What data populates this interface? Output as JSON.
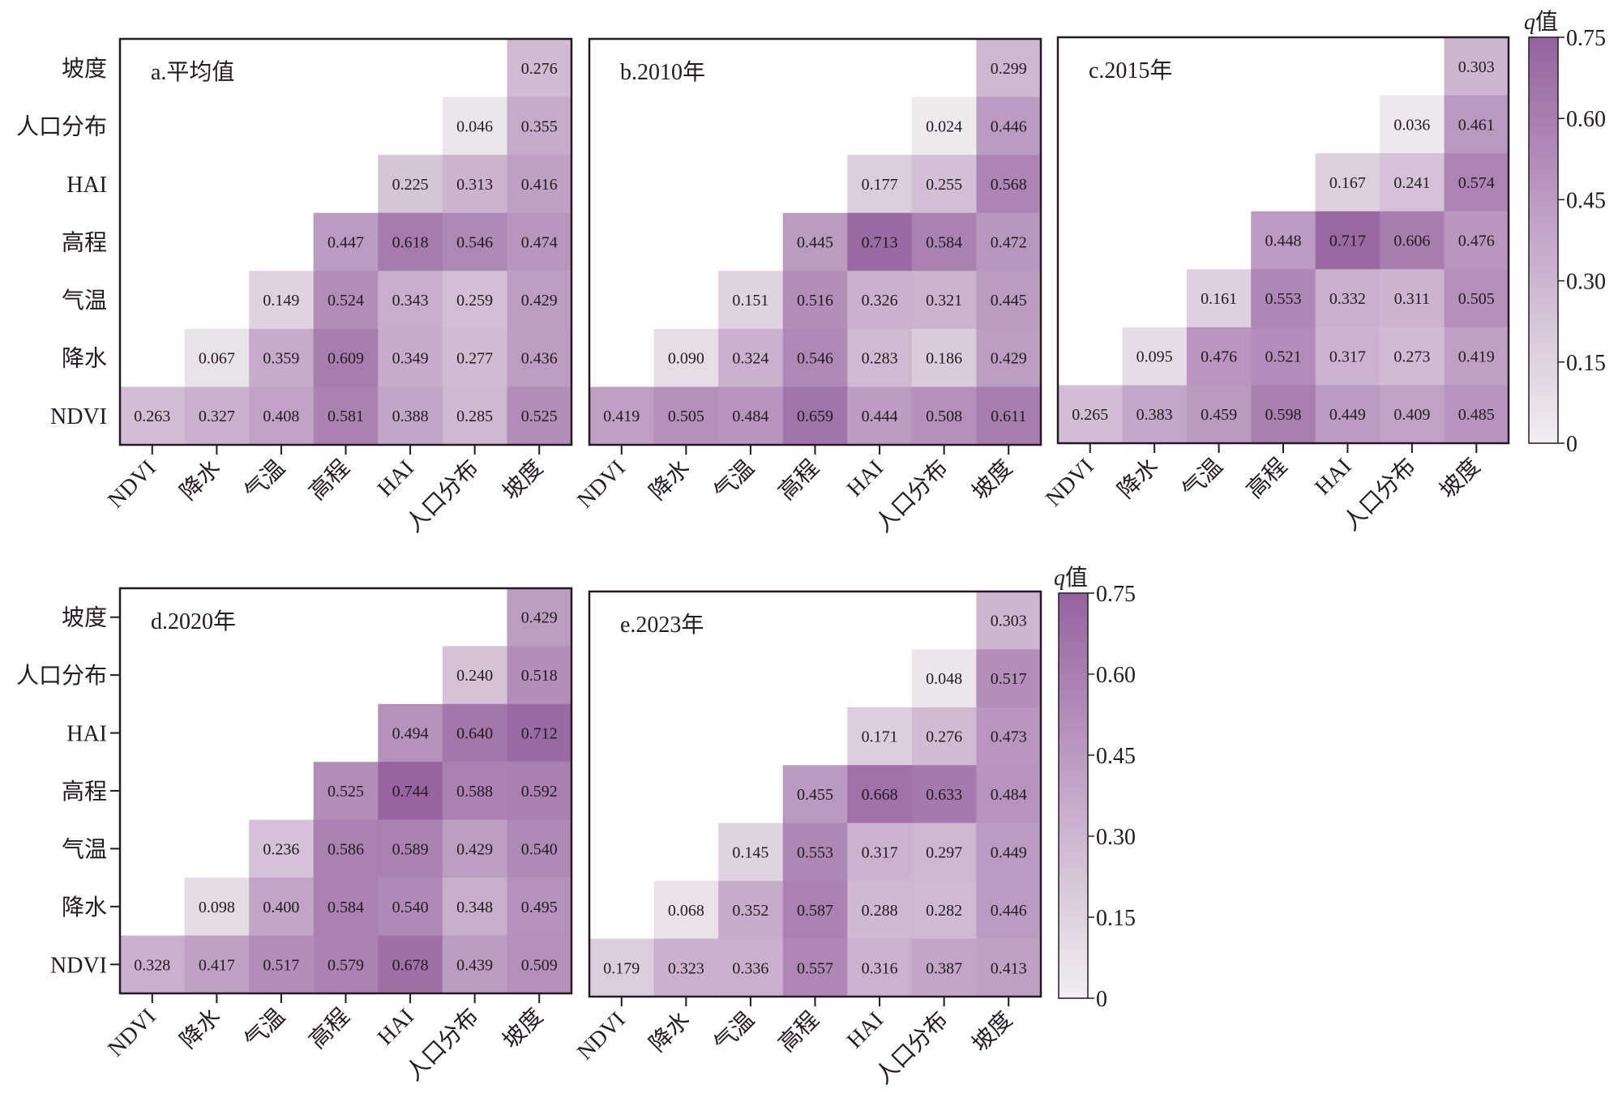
{
  "chart_data": {
    "type": "heatmap",
    "description_type": "lower-triangular interaction q-value matrices",
    "variables": [
      "NDVI",
      "降水",
      "气温",
      "高程",
      "HAI",
      "人口分布",
      "坡度"
    ],
    "y_order_top_to_bottom": [
      "坡度",
      "人口分布",
      "HAI",
      "高程",
      "气温",
      "降水",
      "NDVI"
    ],
    "colorbar": {
      "label_italic": "q",
      "label_suffix": "值",
      "ticks": [
        "0",
        "0.15",
        "0.30",
        "0.45",
        "0.60",
        "0.75"
      ],
      "tick_values": [
        0,
        0.15,
        0.3,
        0.45,
        0.6,
        0.75
      ],
      "range": [
        0,
        0.75
      ],
      "color_low": "#f2eef1",
      "color_high": "#9663a0"
    },
    "panels": [
      {
        "title": "a.平均值",
        "y_ticks_marked": false,
        "rows": {
          "坡度": [
            "",
            "",
            "",
            "",
            "",
            "",
            "0.276"
          ],
          "人口分布": [
            "",
            "",
            "",
            "",
            "",
            "0.046",
            "0.355"
          ],
          "HAI": [
            "",
            "",
            "",
            "",
            "0.225",
            "0.313",
            "0.416"
          ],
          "高程": [
            "",
            "",
            "",
            "0.447",
            "0.618",
            "0.546",
            "0.474"
          ],
          "气温": [
            "",
            "",
            "0.149",
            "0.524",
            "0.343",
            "0.259",
            "0.429"
          ],
          "降水": [
            "",
            "0.067",
            "0.359",
            "0.609",
            "0.349",
            "0.277",
            "0.436"
          ],
          "NDVI": [
            "0.263",
            "0.327",
            "0.408",
            "0.581",
            "0.388",
            "0.285",
            "0.525"
          ]
        }
      },
      {
        "title": "b.2010年",
        "y_ticks_marked": false,
        "rows": {
          "坡度": [
            "",
            "",
            "",
            "",
            "",
            "",
            "0.299"
          ],
          "人口分布": [
            "",
            "",
            "",
            "",
            "",
            "0.024",
            "0.446"
          ],
          "HAI": [
            "",
            "",
            "",
            "",
            "0.177",
            "0.255",
            "0.568"
          ],
          "高程": [
            "",
            "",
            "",
            "0.445",
            "0.713",
            "0.584",
            "0.472"
          ],
          "气温": [
            "",
            "",
            "0.151",
            "0.516",
            "0.326",
            "0.321",
            "0.445"
          ],
          "降水": [
            "",
            "0.090",
            "0.324",
            "0.546",
            "0.283",
            "0.186",
            "0.429"
          ],
          "NDVI": [
            "0.419",
            "0.505",
            "0.484",
            "0.659",
            "0.444",
            "0.508",
            "0.611"
          ]
        }
      },
      {
        "title": "c.2015年",
        "y_ticks_marked": false,
        "rows": {
          "坡度": [
            "",
            "",
            "",
            "",
            "",
            "",
            "0.303"
          ],
          "人口分布": [
            "",
            "",
            "",
            "",
            "",
            "0.036",
            "0.461"
          ],
          "HAI": [
            "",
            "",
            "",
            "",
            "0.167",
            "0.241",
            "0.574"
          ],
          "高程": [
            "",
            "",
            "",
            "0.448",
            "0.717",
            "0.606",
            "0.476"
          ],
          "气温": [
            "",
            "",
            "0.161",
            "0.553",
            "0.332",
            "0.311",
            "0.505"
          ],
          "降水": [
            "",
            "0.095",
            "0.476",
            "0.521",
            "0.317",
            "0.273",
            "0.419"
          ],
          "NDVI": [
            "0.265",
            "0.383",
            "0.459",
            "0.598",
            "0.449",
            "0.409",
            "0.485"
          ]
        }
      },
      {
        "title": "d.2020年",
        "y_ticks_marked": true,
        "rows": {
          "坡度": [
            "",
            "",
            "",
            "",
            "",
            "",
            "0.429"
          ],
          "人口分布": [
            "",
            "",
            "",
            "",
            "",
            "0.240",
            "0.518"
          ],
          "HAI": [
            "",
            "",
            "",
            "",
            "0.494",
            "0.640",
            "0.712"
          ],
          "高程": [
            "",
            "",
            "",
            "0.525",
            "0.744",
            "0.588",
            "0.592"
          ],
          "气温": [
            "",
            "",
            "0.236",
            "0.586",
            "0.589",
            "0.429",
            "0.540"
          ],
          "降水": [
            "",
            "0.098",
            "0.400",
            "0.584",
            "0.540",
            "0.348",
            "0.495"
          ],
          "NDVI": [
            "0.328",
            "0.417",
            "0.517",
            "0.579",
            "0.678",
            "0.439",
            "0.509"
          ]
        }
      },
      {
        "title": "e.2023年",
        "y_ticks_marked": false,
        "rows": {
          "坡度": [
            "",
            "",
            "",
            "",
            "",
            "",
            "0.303"
          ],
          "人口分布": [
            "",
            "",
            "",
            "",
            "",
            "0.048",
            "0.517"
          ],
          "HAI": [
            "",
            "",
            "",
            "",
            "0.171",
            "0.276",
            "0.473"
          ],
          "高程": [
            "",
            "",
            "",
            "0.455",
            "0.668",
            "0.633",
            "0.484"
          ],
          "气温": [
            "",
            "",
            "0.145",
            "0.553",
            "0.317",
            "0.297",
            "0.449"
          ],
          "降水": [
            "",
            "0.068",
            "0.352",
            "0.587",
            "0.288",
            "0.282",
            "0.446"
          ],
          "NDVI": [
            "0.179",
            "0.323",
            "0.336",
            "0.557",
            "0.316",
            "0.387",
            "0.413"
          ]
        }
      }
    ]
  }
}
